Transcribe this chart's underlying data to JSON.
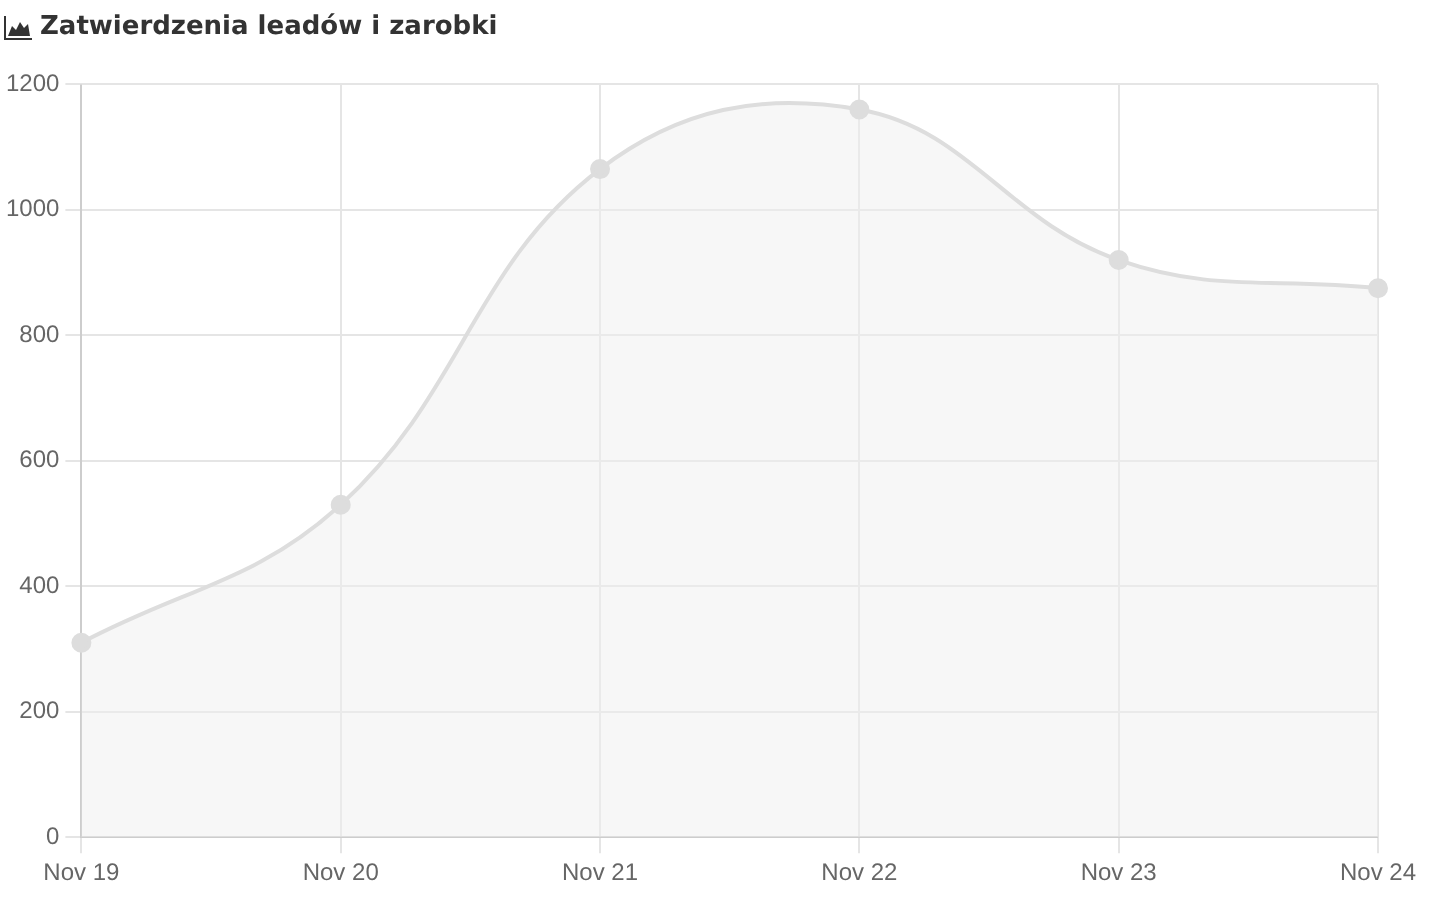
{
  "chart_data": {
    "type": "area",
    "title": "Zatwierdzenia leadów i zarobki",
    "categories": [
      "Nov 19",
      "Nov 20",
      "Nov 21",
      "Nov 22",
      "Nov 23",
      "Nov 24"
    ],
    "series": [
      {
        "color": "#dddddd",
        "values": [
          310,
          530,
          1065,
          1160,
          920,
          875
        ]
      }
    ],
    "ylim": [
      0,
      1200
    ],
    "yticks": [
      0,
      200,
      400,
      600,
      800,
      1000,
      1200
    ],
    "grid": true,
    "marker": "circle"
  }
}
